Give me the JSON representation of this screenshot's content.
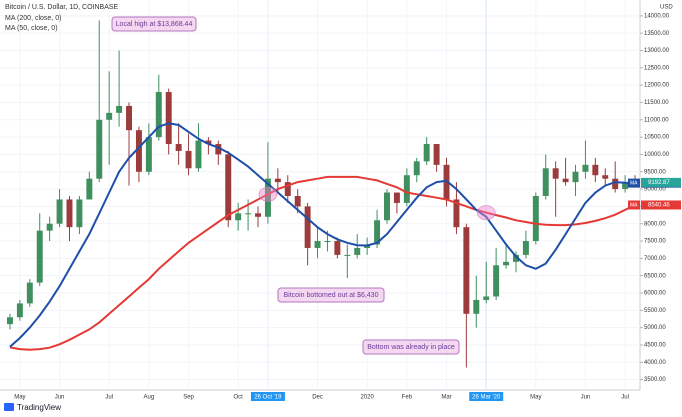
{
  "chart_data": {
    "type": "candlestick",
    "title": "Bitcoin / U.S. Dollar, 1D, COINBASE",
    "currency": "USD",
    "categories": [
      null,
      "May",
      null,
      null,
      null,
      "Jun",
      null,
      null,
      null,
      null,
      "Jul",
      null,
      null,
      null,
      "Aug",
      null,
      null,
      null,
      "Sep",
      null,
      null,
      null,
      null,
      "Oct",
      null,
      null,
      "26 Oct '19",
      null,
      null,
      null,
      null,
      "Dec",
      null,
      null,
      null,
      null,
      "2020",
      null,
      null,
      null,
      "Feb",
      null,
      null,
      null,
      "Mar",
      null,
      null,
      null,
      "26 Mar '20",
      null,
      null,
      null,
      null,
      "May",
      null,
      null,
      null,
      null,
      "Jun",
      null,
      null,
      null,
      "Jul",
      null
    ],
    "open": [
      5100,
      5300,
      5700,
      6300,
      7800,
      8000,
      8700,
      7900,
      8700,
      9300,
      11000,
      11200,
      11400,
      10700,
      9500,
      10500,
      11800,
      10300,
      10100,
      9600,
      10400,
      10300,
      10000,
      8100,
      8300,
      8300,
      8200,
      9300,
      9200,
      8800,
      8500,
      7300,
      7500,
      7500,
      7100,
      7100,
      7300,
      7400,
      8100,
      8900,
      8600,
      9400,
      9800,
      10300,
      9700,
      8700,
      7900,
      5400,
      5800,
      5900,
      6800,
      6900,
      7100,
      7500,
      8800,
      9600,
      9300,
      9200,
      9500,
      9700,
      9400,
      9300,
      9000,
      9200
    ],
    "high": [
      5400,
      5800,
      6400,
      8300,
      8200,
      9000,
      8800,
      8800,
      9500,
      13868.44,
      12400,
      13000,
      11500,
      10800,
      10900,
      12300,
      11900,
      10900,
      10600,
      10900,
      10500,
      10400,
      10100,
      8600,
      8700,
      8500,
      10350,
      9600,
      9400,
      9000,
      8600,
      7900,
      7800,
      7600,
      7400,
      7700,
      7600,
      8400,
      9000,
      8900,
      9600,
      9900,
      10500,
      10300,
      9900,
      9200,
      8000,
      6500,
      6900,
      7300,
      7400,
      7200,
      7800,
      8900,
      10000,
      9800,
      9900,
      9700,
      10400,
      9900,
      9600,
      9800,
      9400,
      9400
    ],
    "low": [
      4950,
      5200,
      5600,
      6200,
      7500,
      7900,
      7500,
      7700,
      8700,
      9200,
      9700,
      10800,
      9100,
      9200,
      9400,
      10400,
      10000,
      9700,
      9400,
      9500,
      10000,
      9700,
      7900,
      7800,
      7800,
      7900,
      8000,
      8900,
      8600,
      8300,
      6800,
      7000,
      7200,
      7000,
      6430,
      7000,
      7100,
      7300,
      8000,
      8300,
      8500,
      9200,
      9700,
      9500,
      8500,
      7700,
      3850,
      5000,
      5700,
      5800,
      6700,
      6600,
      7000,
      7400,
      8700,
      8200,
      9100,
      8800,
      9300,
      9200,
      9100,
      8900,
      8900,
      9100
    ],
    "close": [
      5300,
      5700,
      6300,
      7800,
      8000,
      8700,
      7900,
      8700,
      9300,
      11000,
      11200,
      11400,
      10700,
      9500,
      10500,
      11800,
      10300,
      10100,
      9600,
      10400,
      10300,
      10000,
      8100,
      8300,
      8300,
      8200,
      9300,
      9200,
      8800,
      8500,
      7300,
      7500,
      7500,
      7100,
      7100,
      7300,
      7400,
      8100,
      8900,
      8600,
      9400,
      9800,
      10300,
      9700,
      8700,
      7900,
      5400,
      5800,
      5900,
      6800,
      6900,
      7100,
      7500,
      8800,
      9600,
      9300,
      9200,
      9500,
      9700,
      9400,
      9300,
      9000,
      9200,
      9192.87
    ],
    "up_color": "#3f8f5f",
    "down_color": "#9c3b3b",
    "last_color": "#26a69a",
    "overlays": [
      {
        "name": "MA (200, close, 0)",
        "short_name": "MA",
        "color": "#e53935",
        "values": [
          4430,
          4380,
          4360,
          4380,
          4420,
          4520,
          4650,
          4800,
          4950,
          5150,
          5400,
          5650,
          5900,
          6150,
          6400,
          6700,
          6950,
          7200,
          7450,
          7650,
          7850,
          8050,
          8250,
          8400,
          8550,
          8700,
          8850,
          9000,
          9100,
          9200,
          9250,
          9300,
          9350,
          9350,
          9350,
          9350,
          9300,
          9250,
          9150,
          9050,
          8900,
          8850,
          8800,
          8750,
          8700,
          8600,
          8500,
          8400,
          8320,
          8250,
          8180,
          8100,
          8050,
          8000,
          7970,
          7960,
          7960,
          7980,
          8020,
          8080,
          8160,
          8260,
          8400,
          8540.46
        ]
      },
      {
        "name": "MA (50, close, 0)",
        "short_name": "MA",
        "color": "#1e4fa8",
        "values": [
          4450,
          4700,
          5000,
          5350,
          5750,
          6200,
          6700,
          7200,
          7700,
          8300,
          8900,
          9500,
          9900,
          10200,
          10500,
          10800,
          10900,
          10850,
          10650,
          10450,
          10300,
          10200,
          10050,
          9850,
          9650,
          9400,
          9150,
          8900,
          8650,
          8400,
          8150,
          7900,
          7700,
          7550,
          7450,
          7380,
          7370,
          7450,
          7700,
          8050,
          8400,
          8750,
          9050,
          9200,
          9240,
          9000,
          8700,
          8400,
          8200,
          7800,
          7400,
          7050,
          6800,
          6700,
          6850,
          7250,
          7700,
          8150,
          8600,
          8900,
          9100,
          9200,
          9180,
          9171.95
        ]
      }
    ],
    "highlighted": [
      26,
      48
    ],
    "annotations": [
      "Local high at $13,868.44",
      "Bitcoin bottomed out at $6,430",
      "Bottom was already in place"
    ],
    "ylim": [
      3200,
      14400
    ],
    "yticks": [
      {
        "value": 3500,
        "label": "3500.00"
      },
      {
        "value": 4000,
        "label": "4000.00"
      },
      {
        "value": 4500,
        "label": "4500.00"
      },
      {
        "value": 5000,
        "label": "5000.00"
      },
      {
        "value": 5500,
        "label": "5500.00"
      },
      {
        "value": 6000,
        "label": "6000.00"
      },
      {
        "value": 6500,
        "label": "6500.00"
      },
      {
        "value": 7000,
        "label": "7000.00"
      },
      {
        "value": 7500,
        "label": "7500.00"
      },
      {
        "value": 8000,
        "label": "8000.00"
      },
      {
        "value": 8500,
        "label": "8500.00"
      },
      {
        "value": 9000,
        "label": "9000.00"
      },
      {
        "value": 9500,
        "label": "9500.00"
      },
      {
        "value": 10000,
        "label": "10000.00"
      },
      {
        "value": 10500,
        "label": "10500.00"
      },
      {
        "value": 11000,
        "label": "11000.00"
      },
      {
        "value": 11500,
        "label": "11500.00"
      },
      {
        "value": 12000,
        "label": "12000.00"
      },
      {
        "value": 12500,
        "label": "12500.00"
      },
      {
        "value": 13000,
        "label": "13000.00"
      },
      {
        "value": 13500,
        "label": "13500.00"
      },
      {
        "value": 14000,
        "label": "14000.00"
      }
    ],
    "grid": true
  },
  "branding": "TradingView"
}
